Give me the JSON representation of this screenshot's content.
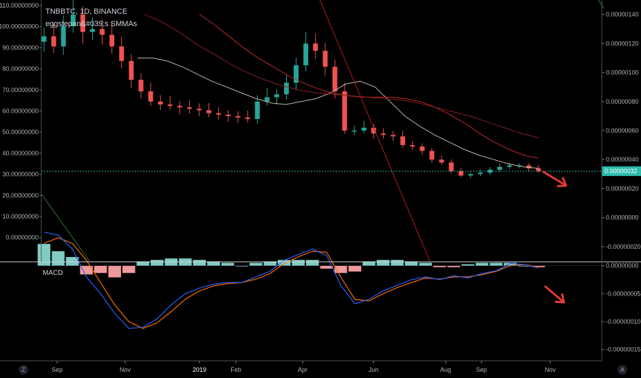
{
  "header": {
    "symbol_line": "TNBBTC, 1D, BINANCE",
    "study_line": "eggstepan&#039;s SMMAs"
  },
  "macd_label": "MACD",
  "corner_buttons": {
    "left": "Z",
    "right": "A"
  },
  "colors": {
    "background": "#000000",
    "up": "#26a69a",
    "down": "#ef5350",
    "price_line": "#2bbbad",
    "macd_line": "#2962ff",
    "signal_line": "#ff6d00",
    "hist_pos": "#80cbc4",
    "hist_neg": "#ef9a9a",
    "trend_line": "#b71c1c",
    "green_line": "#2e7d32",
    "arrow": "#e53935"
  },
  "chart_data": [
    {
      "type": "candlestick",
      "y_left_ticks": [
        "110.00000000",
        "100.00000000",
        "90.00000000",
        "80.00000000",
        "70.00000000",
        "60.00000000",
        "50.00000000",
        "40.00000000",
        "30.00000000",
        "20.00000000",
        "10.00000000",
        "0.00000000"
      ],
      "y_right_ticks": [
        "0.00000140",
        "0.00000120",
        "0.00000100",
        "0.00000080",
        "0.00000060",
        "0.00000040",
        "0.00000020",
        "0.00000000",
        "-0.00000020"
      ],
      "ylim_right": [
        -3e-07,
        1.5e-06
      ],
      "current_price_label": "0.00000032",
      "current_price": 3.2e-07,
      "x_ticks": [
        "Sep",
        "Nov",
        "2019",
        "Feb",
        "Apr",
        "Jun",
        "Aug",
        "Sep",
        "Nov"
      ],
      "series_close": [
        1.25e-06,
        1.18e-06,
        1.32e-06,
        1.4e-06,
        1.28e-06,
        1.3e-06,
        1.26e-06,
        1.18e-06,
        1.08e-06,
        9.5e-07,
        8.7e-07,
        8e-07,
        7.8e-07,
        7.7e-07,
        7.6e-07,
        7.5e-07,
        7.4e-07,
        7.2e-07,
        7.1e-07,
        7e-07,
        6.9e-07,
        6.8e-07,
        8e-07,
        8.3e-07,
        8.5e-07,
        9.3e-07,
        1.05e-06,
        1.2e-06,
        1.15e-06,
        1.04e-06,
        8.7e-07,
        6e-07,
        6e-07,
        6.2e-07,
        5.8e-07,
        5.7e-07,
        5.6e-07,
        5e-07,
        4.9e-07,
        4.6e-07,
        4e-07,
        3.8e-07,
        3.2e-07,
        2.9e-07,
        3e-07,
        3.1e-07,
        3.3e-07,
        3.5e-07,
        3.6e-07,
        3.6e-07,
        3.4e-07,
        3.2e-07
      ],
      "smma_series": [
        {
          "values": [
            1.1e-06,
            1.1e-06,
            1.08e-06,
            1.04e-06,
            9.9e-07,
            9.4e-07,
            9e-07,
            8.6e-07,
            8.2e-07,
            7.9e-07,
            7.8e-07,
            8e-07,
            8.2e-07,
            8.6e-07,
            9.2e-07,
            9.4e-07,
            9e-07,
            8e-07,
            7e-07,
            6.3e-07,
            5.7e-07,
            5.2e-07,
            4.7e-07,
            4.3e-07,
            4e-07,
            3.7e-07,
            3.5e-07,
            3.4e-07
          ]
        },
        {
          "values": [
            1.4e-06,
            1.33e-06,
            1.25e-06,
            1.17e-06,
            1.1e-06,
            1.04e-06,
            9.8e-07,
            9.3e-07,
            8.9e-07,
            8.6e-07,
            8.4e-07,
            8.3e-07,
            8.3e-07,
            8.3e-07,
            8.2e-07,
            8e-07,
            7.6e-07,
            7.1e-07,
            6.5e-07,
            5.8e-07,
            5.2e-07,
            4.7e-07,
            4.3e-07,
            4.1e-07
          ]
        },
        {
          "values": [
            1.4e-06,
            1.35e-06,
            1.28e-06,
            1.2e-06,
            1.13e-06,
            1.06e-06,
            1e-06,
            9.5e-07,
            9.1e-07,
            8.8e-07,
            8.6e-07,
            8.5e-07,
            8.4e-07,
            8.3e-07,
            8.2e-07,
            8.1e-07,
            7.9e-07,
            7.6e-07,
            7.3e-07,
            7e-07,
            6.6e-07,
            6.2e-07,
            5.8e-07,
            5.5e-07
          ]
        }
      ]
    },
    {
      "type": "bar",
      "title": "MACD",
      "y_right_ticks": [
        "0.00000000",
        "-0.00000005",
        "-0.00000010",
        "-0.00000015"
      ],
      "ylim_right": [
        -1.7e-07,
        5.7e-09
      ],
      "macd": [
        6e-08,
        5.5e-08,
        3e-08,
        -2e-08,
        -5e-08,
        -8.5e-08,
        -1.12e-07,
        -1.1e-07,
        -9.5e-08,
        -7e-08,
        -5e-08,
        -4e-08,
        -3.3e-08,
        -3e-08,
        -3e-08,
        -2e-08,
        -1e-08,
        1e-08,
        2e-08,
        3e-08,
        1.8e-08,
        -3.5e-08,
        -6.8e-08,
        -6e-08,
        -4.5e-08,
        -3.5e-08,
        -2.5e-08,
        -2e-08,
        -2.5e-08,
        -1.8e-08,
        -2.2e-08,
        -1.4e-08,
        -9e-09,
        4e-09,
        2e-09,
        -4e-09
      ],
      "signal": [
        4e-08,
        5e-08,
        4e-08,
        1e-08,
        -3e-08,
        -7e-08,
        -1e-07,
        -1.12e-07,
        -1.02e-07,
        -8.2e-08,
        -6e-08,
        -4.5e-08,
        -3.6e-08,
        -3.2e-08,
        -3e-08,
        -2.4e-08,
        -1.4e-08,
        4e-09,
        1.6e-08,
        2.6e-08,
        2.4e-08,
        -2e-08,
        -6e-08,
        -6.3e-08,
        -5e-08,
        -3.9e-08,
        -3e-08,
        -2.2e-08,
        -2.4e-08,
        -2e-08,
        -2e-08,
        -1.6e-08,
        -1e-08,
        0.0,
        2e-09,
        -2e-09
      ],
      "histogram": [
        1.5e-08,
        1e-08,
        6e-09,
        -6e-09,
        -5e-09,
        -8e-09,
        -5e-09,
        3e-09,
        4e-09,
        5e-09,
        5e-09,
        4e-09,
        3e-09,
        2e-09,
        0.0,
        2e-09,
        3e-09,
        4e-09,
        4e-09,
        4e-09,
        -2e-09,
        -5e-09,
        -4e-09,
        3e-09,
        4e-09,
        4e-09,
        3e-09,
        2e-09,
        -1e-09,
        -1e-09,
        1e-09,
        2e-09,
        2e-09,
        2e-09,
        0.0,
        -1e-09
      ]
    }
  ]
}
